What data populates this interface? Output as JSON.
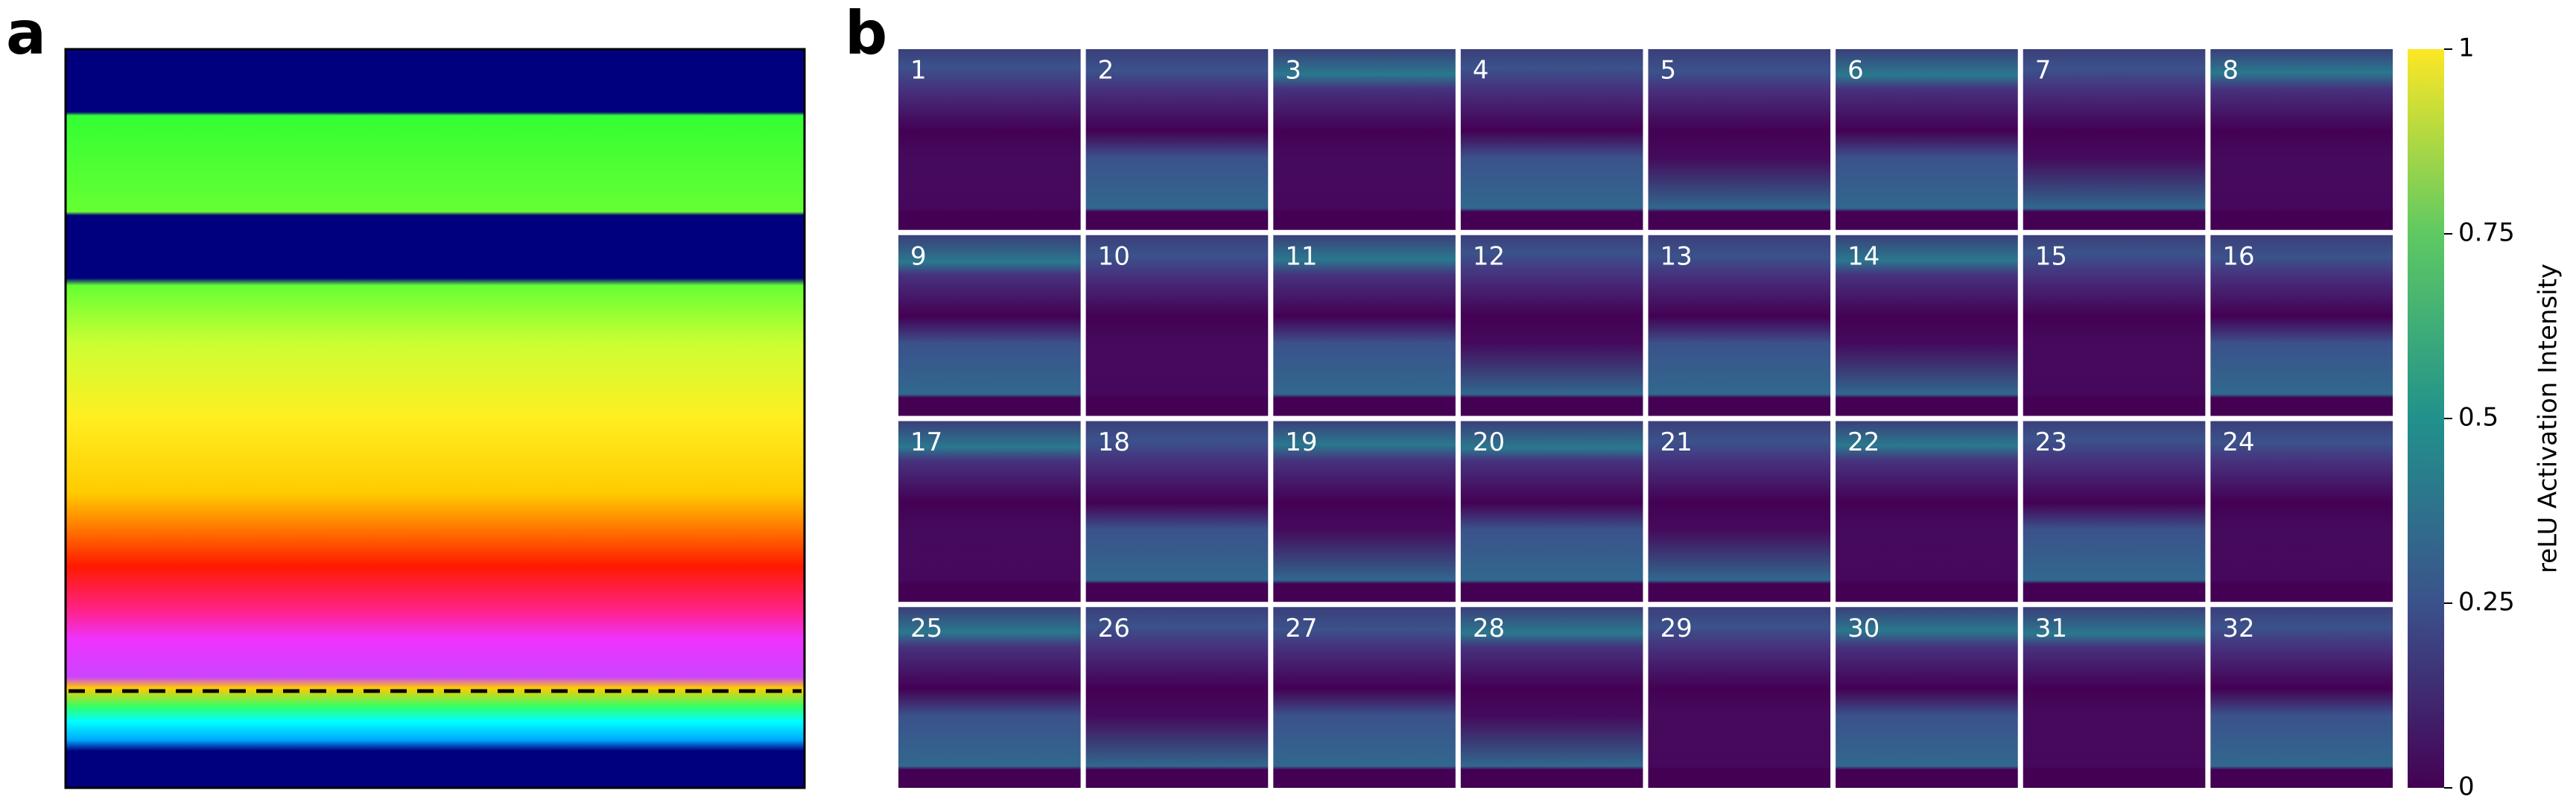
{
  "panels": {
    "a": {
      "label": "a"
    },
    "b": {
      "label": "b",
      "tiles": [
        1,
        2,
        3,
        4,
        5,
        6,
        7,
        8,
        9,
        10,
        11,
        12,
        13,
        14,
        15,
        16,
        17,
        18,
        19,
        20,
        21,
        22,
        23,
        24,
        25,
        26,
        27,
        28,
        29,
        30,
        31,
        32
      ]
    }
  },
  "colorbar": {
    "label": "reLU Activation Intensity",
    "ylim": [
      0,
      1
    ],
    "yticks": [
      0,
      0.25,
      0.5,
      0.75,
      1
    ]
  }
}
